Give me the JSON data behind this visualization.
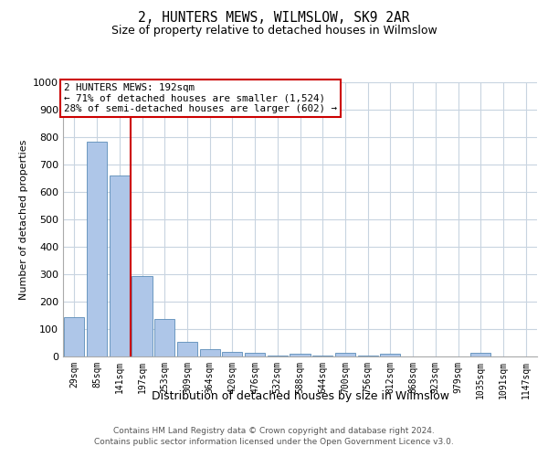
{
  "title": "2, HUNTERS MEWS, WILMSLOW, SK9 2AR",
  "subtitle": "Size of property relative to detached houses in Wilmslow",
  "xlabel": "Distribution of detached houses by size in Wilmslow",
  "ylabel": "Number of detached properties",
  "bar_labels": [
    "29sqm",
    "85sqm",
    "141sqm",
    "197sqm",
    "253sqm",
    "309sqm",
    "364sqm",
    "420sqm",
    "476sqm",
    "532sqm",
    "588sqm",
    "644sqm",
    "700sqm",
    "756sqm",
    "812sqm",
    "868sqm",
    "923sqm",
    "979sqm",
    "1035sqm",
    "1091sqm",
    "1147sqm"
  ],
  "bar_values": [
    143,
    783,
    660,
    295,
    137,
    55,
    28,
    18,
    13,
    5,
    10,
    5,
    12,
    5,
    10,
    0,
    0,
    0,
    12,
    0,
    0
  ],
  "bar_color": "#aec6e8",
  "bar_edge_color": "#5b8db8",
  "vline_position": 2.5,
  "vline_color": "#cc0000",
  "annotation_text": "2 HUNTERS MEWS: 192sqm\n← 71% of detached houses are smaller (1,524)\n28% of semi-detached houses are larger (602) →",
  "annotation_box_edgecolor": "#cc0000",
  "ylim": [
    0,
    1000
  ],
  "yticks": [
    0,
    100,
    200,
    300,
    400,
    500,
    600,
    700,
    800,
    900,
    1000
  ],
  "footer1": "Contains HM Land Registry data © Crown copyright and database right 2024.",
  "footer2": "Contains public sector information licensed under the Open Government Licence v3.0.",
  "bg_color": "#ffffff",
  "grid_color": "#c8d4e0"
}
